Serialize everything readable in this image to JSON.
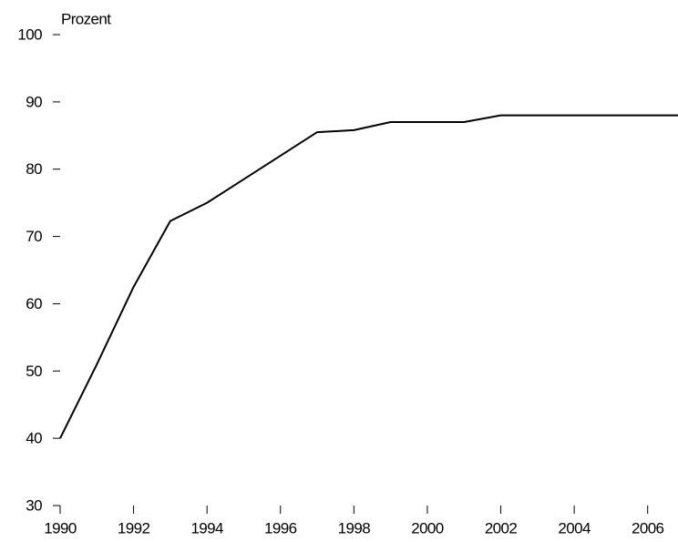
{
  "chart_data": {
    "type": "line",
    "y_label": "Prozent",
    "x": [
      1990,
      1991,
      1992,
      1993,
      1994,
      1995,
      1996,
      1997,
      1998,
      1999,
      2000,
      2001,
      2002,
      2003,
      2004,
      2005,
      2006,
      2007
    ],
    "series": [
      {
        "color": "#000000",
        "values": [
          40,
          51,
          62.5,
          72.3,
          75,
          78.5,
          82,
          85.5,
          85.8,
          87,
          87,
          87,
          88,
          88,
          88,
          88,
          88,
          88
        ]
      }
    ],
    "xlim": [
      1990,
      2007
    ],
    "xticks": [
      1990,
      1992,
      1994,
      1996,
      1998,
      2000,
      2002,
      2004,
      2006
    ],
    "ylim": [
      30,
      100
    ],
    "yticks": [
      30,
      40,
      50,
      60,
      70,
      80,
      90,
      100
    ]
  }
}
